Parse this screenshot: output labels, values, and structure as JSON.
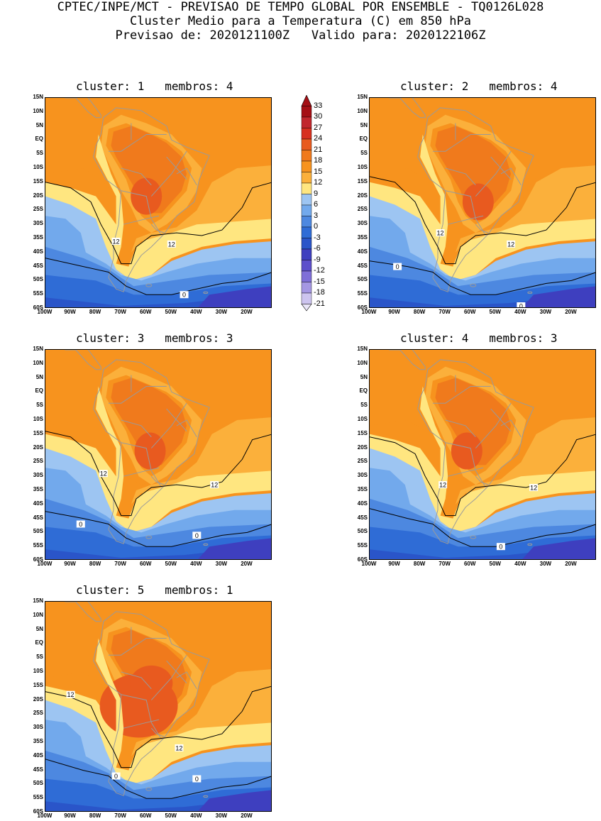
{
  "header": {
    "line1": "CPTEC/INPE/MCT - PREVISAO DE TEMPO GLOBAL POR ENSEMBLE - TQ0126L028",
    "line2": "Cluster Medio para a Temperatura (C) em 850 hPa",
    "line3": "Previsao de: 2020121100Z   Valido para: 2020122106Z"
  },
  "lat_labels": [
    "15N",
    "10N",
    "5N",
    "EQ",
    "5S",
    "10S",
    "15S",
    "20S",
    "25S",
    "30S",
    "35S",
    "40S",
    "45S",
    "50S",
    "55S",
    "60S"
  ],
  "lon_labels": [
    "100W",
    "90W",
    "80W",
    "70W",
    "60W",
    "50W",
    "40W",
    "30W",
    "20W"
  ],
  "colorbar": {
    "labels": [
      "33",
      "30",
      "27",
      "24",
      "21",
      "18",
      "15",
      "12",
      "9",
      "6",
      "3",
      "0",
      "-3",
      "-6",
      "-9",
      "-12",
      "-15",
      "-18",
      "-21"
    ],
    "colors": [
      "#a50f15",
      "#c1272d",
      "#d7301f",
      "#e85a1f",
      "#f07a1c",
      "#f7931e",
      "#fbb03b",
      "#ffe680",
      "#9dc5f2",
      "#72a9ec",
      "#4d88e0",
      "#2f6cd6",
      "#2a55c9",
      "#3e3fbf",
      "#5d4fcb",
      "#7f6fd8",
      "#a597e3",
      "#cdc4ef"
    ]
  },
  "panels": [
    {
      "title": "cluster: 1   membros: 4",
      "labels": [
        "12",
        "12",
        "0"
      ]
    },
    {
      "title": "cluster: 2   membros: 4",
      "labels": [
        "12",
        "12",
        "0",
        "0"
      ]
    },
    {
      "title": "cluster: 3   membros: 3",
      "labels": [
        "12",
        "12",
        "0",
        "0"
      ]
    },
    {
      "title": "cluster: 4   membros: 3",
      "labels": [
        "12",
        "12",
        "0"
      ]
    },
    {
      "title": "cluster: 5   membros: 1",
      "labels": [
        "12",
        "12",
        "0",
        "0"
      ]
    }
  ]
}
